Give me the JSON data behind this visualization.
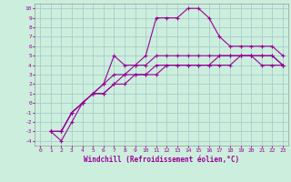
{
  "xlabel": "Windchill (Refroidissement éolien,°C)",
  "ylabel": "",
  "xlim": [
    -0.5,
    23.5
  ],
  "ylim": [
    -4.5,
    10.5
  ],
  "bg_color": "#cceedd",
  "line_color": "#990099",
  "grid_color": "#aacccc",
  "line1_x": [
    1,
    2,
    3,
    4,
    5,
    6,
    7,
    8,
    9,
    10,
    11,
    12,
    13,
    14,
    15,
    16,
    17,
    18,
    19,
    20,
    21,
    22,
    23
  ],
  "line1_y": [
    -3,
    -4,
    -2,
    0,
    1,
    2,
    5,
    4,
    4,
    5,
    9,
    9,
    9,
    10,
    10,
    9,
    7,
    6,
    6,
    6,
    6,
    6,
    5
  ],
  "line2_x": [
    1,
    2,
    3,
    4,
    5,
    6,
    7,
    8,
    9,
    10,
    11,
    12,
    13,
    14,
    15,
    16,
    17,
    18,
    19,
    20,
    21,
    22,
    23
  ],
  "line2_y": [
    -3,
    -3,
    -1,
    0,
    1,
    2,
    3,
    3,
    4,
    4,
    5,
    5,
    5,
    5,
    5,
    5,
    5,
    5,
    5,
    5,
    5,
    5,
    4
  ],
  "line3_x": [
    1,
    2,
    3,
    4,
    5,
    6,
    7,
    8,
    9,
    10,
    11,
    12,
    13,
    14,
    15,
    16,
    17,
    18,
    19,
    20,
    21,
    22,
    23
  ],
  "line3_y": [
    -3,
    -3,
    -1,
    0,
    1,
    1,
    2,
    3,
    3,
    3,
    4,
    4,
    4,
    4,
    4,
    4,
    5,
    5,
    5,
    5,
    5,
    5,
    4
  ],
  "line4_x": [
    1,
    2,
    3,
    4,
    5,
    6,
    7,
    8,
    9,
    10,
    11,
    12,
    13,
    14,
    15,
    16,
    17,
    18,
    19,
    20,
    21,
    22,
    23
  ],
  "line4_y": [
    -3,
    -3,
    -1,
    0,
    1,
    1,
    2,
    2,
    3,
    3,
    3,
    4,
    4,
    4,
    4,
    4,
    4,
    4,
    5,
    5,
    4,
    4,
    4
  ],
  "xticks": [
    0,
    1,
    2,
    3,
    4,
    5,
    6,
    7,
    8,
    9,
    10,
    11,
    12,
    13,
    14,
    15,
    16,
    17,
    18,
    19,
    20,
    21,
    22,
    23
  ],
  "yticks": [
    10,
    9,
    8,
    7,
    6,
    5,
    4,
    3,
    2,
    1,
    0,
    -1,
    -2,
    -3,
    -4
  ],
  "marker": "+"
}
